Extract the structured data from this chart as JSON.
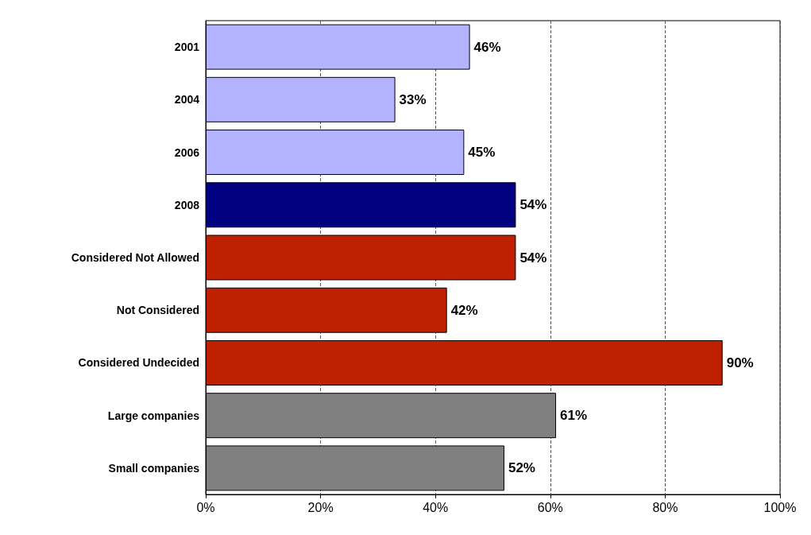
{
  "chart_data": {
    "type": "bar",
    "orientation": "horizontal",
    "categories": [
      "2001",
      "2004",
      "2006",
      "2008",
      "Considered Not Allowed",
      "Not Considered",
      "Considered Undecided",
      "Large companies",
      "Small companies"
    ],
    "values": [
      46,
      33,
      45,
      54,
      54,
      42,
      90,
      61,
      52
    ],
    "colors": [
      "#b3b3ff",
      "#b3b3ff",
      "#b3b3ff",
      "#000080",
      "#bf2000",
      "#bf2000",
      "#bf2000",
      "#808080",
      "#808080"
    ],
    "value_labels": [
      "46%",
      "33%",
      "45%",
      "54%",
      "54%",
      "42%",
      "90%",
      "61%",
      "52%"
    ],
    "xlim": [
      0,
      100
    ],
    "xticks": [
      {
        "value": 0,
        "label": "0%"
      },
      {
        "value": 20,
        "label": "20%"
      },
      {
        "value": 40,
        "label": "40%"
      },
      {
        "value": 60,
        "label": "60%"
      },
      {
        "value": 80,
        "label": "80%"
      },
      {
        "value": 100,
        "label": "100%"
      }
    ],
    "grid": "x"
  }
}
